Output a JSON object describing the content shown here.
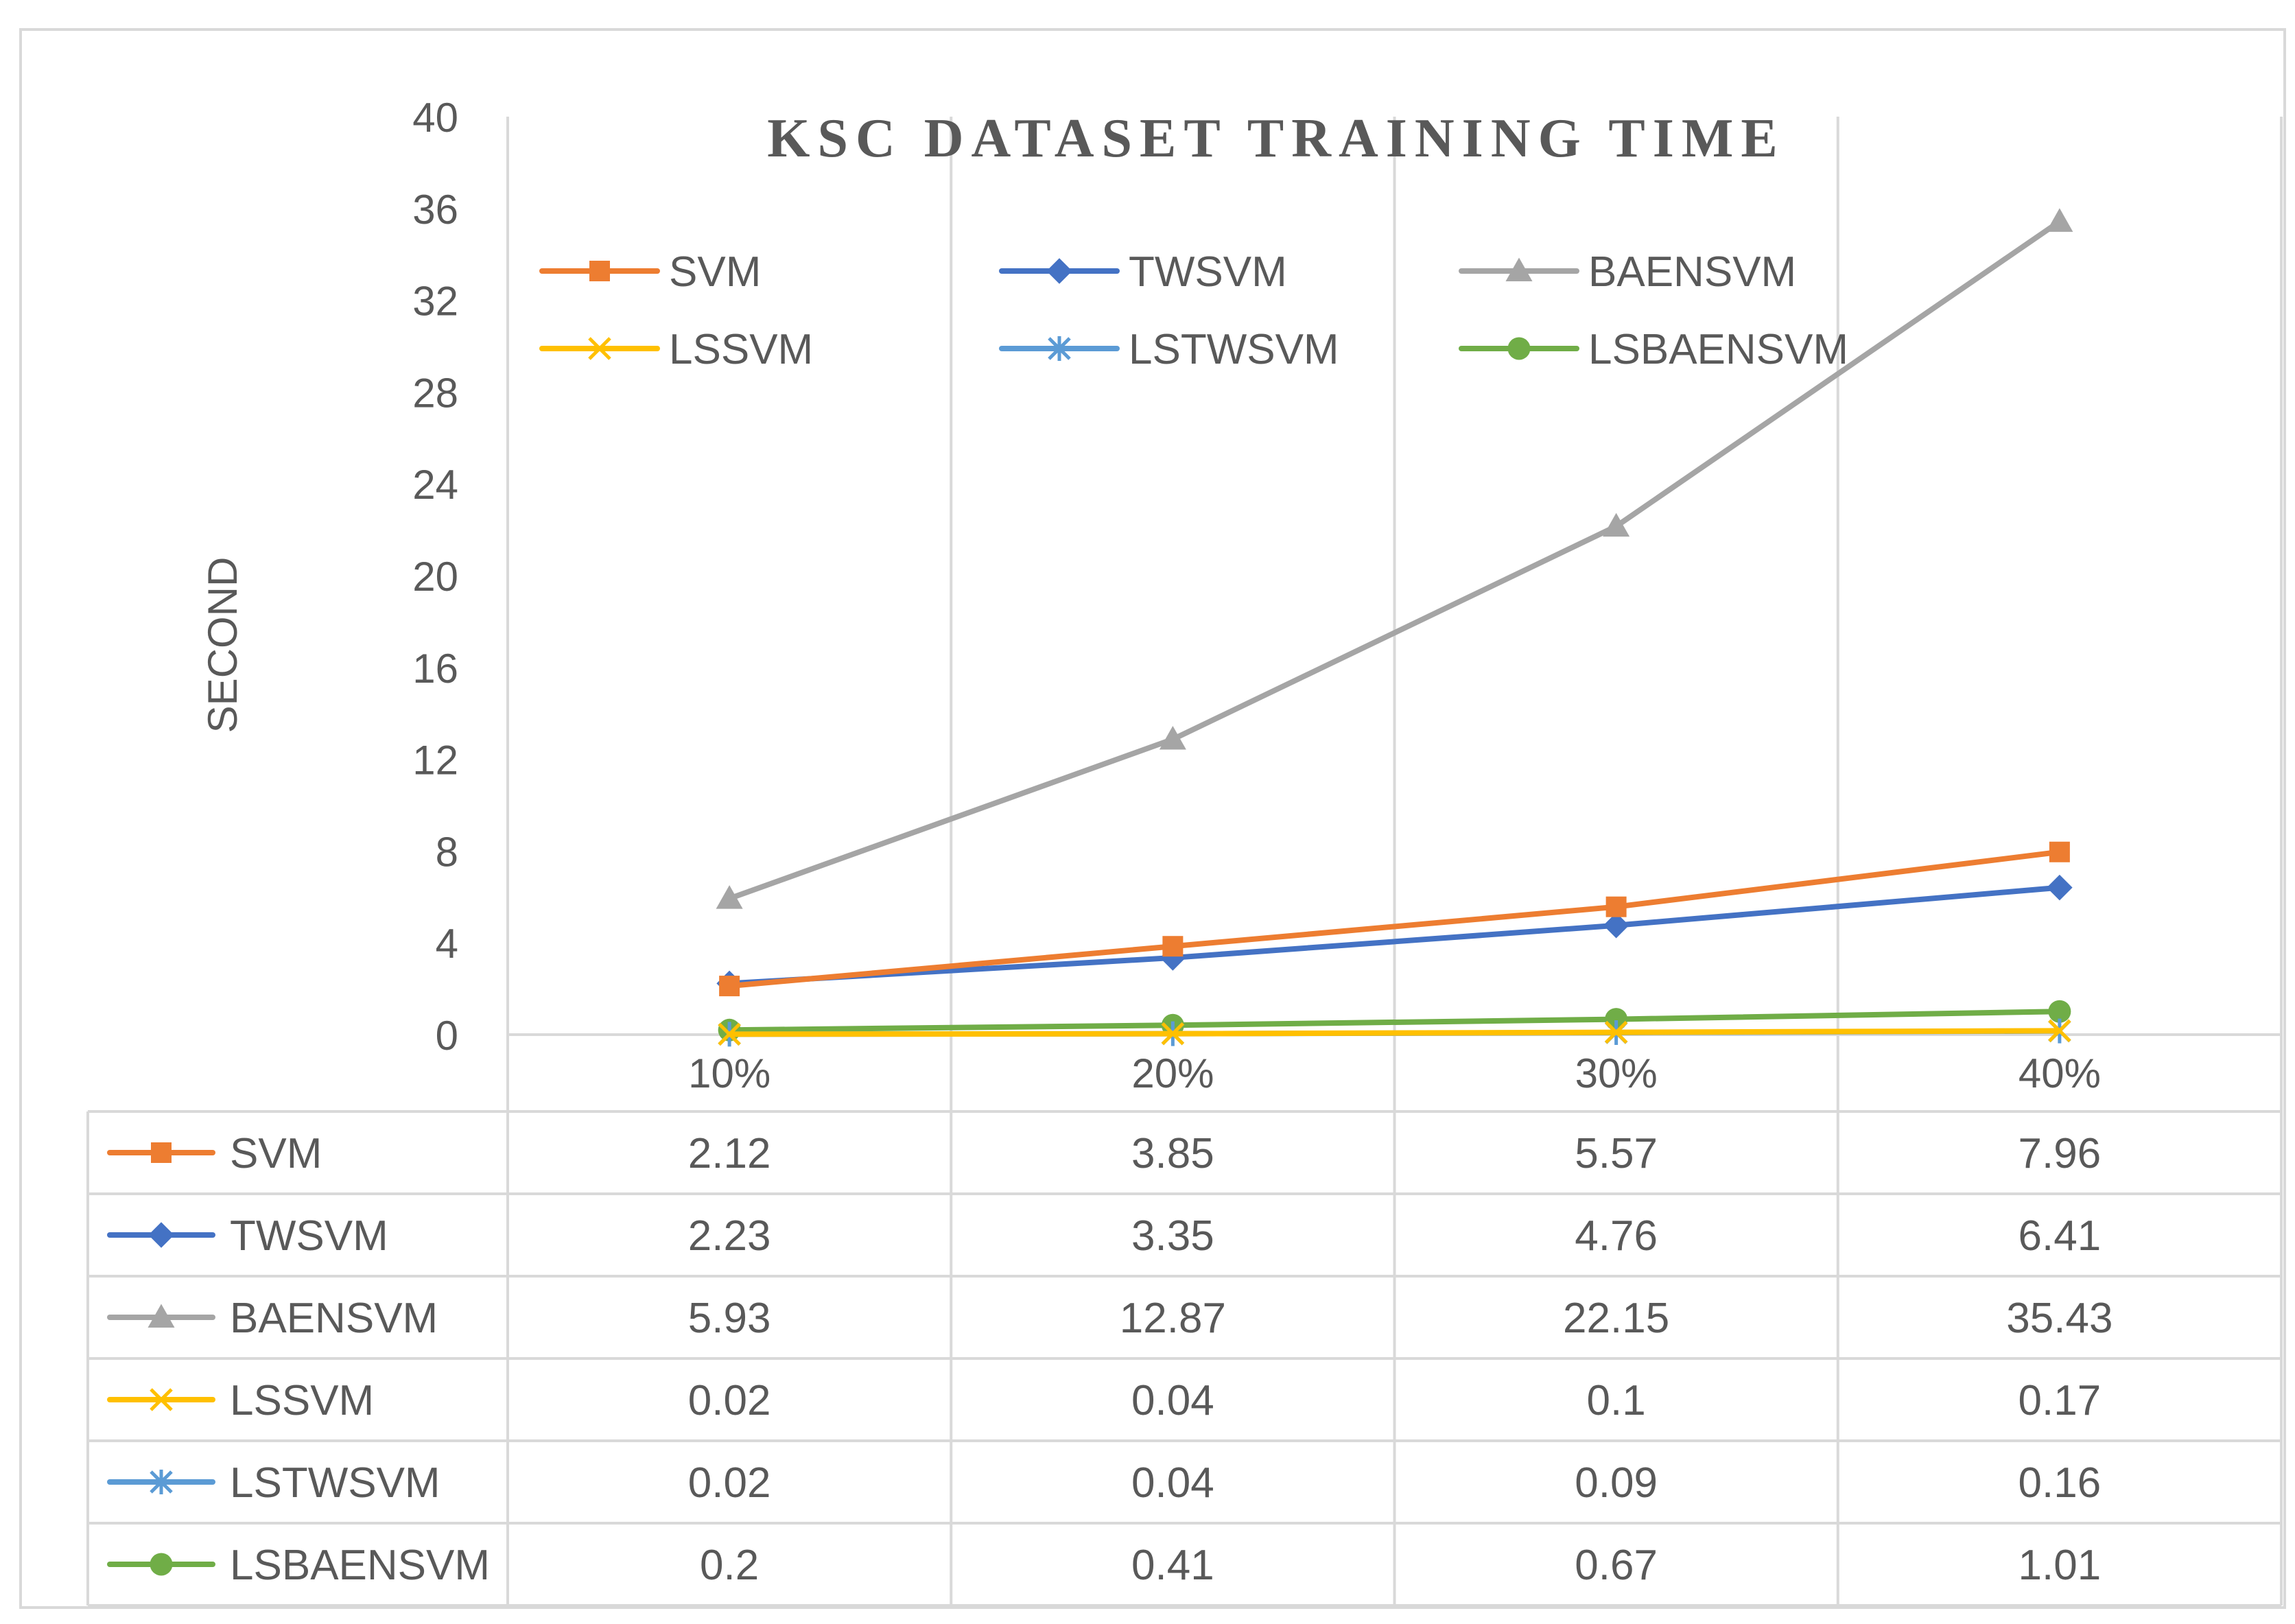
{
  "chart_data": {
    "type": "line",
    "title": "KSC DATASET TRAINING TIME",
    "xlabel": "",
    "ylabel": "SECOND",
    "categories": [
      "10%",
      "20%",
      "30%",
      "40%"
    ],
    "ylim": [
      0,
      40
    ],
    "yticks": [
      0,
      4,
      8,
      12,
      16,
      20,
      24,
      28,
      32,
      36,
      40
    ],
    "grid": "vertical",
    "legend_position": "top",
    "data_table": true,
    "series": [
      {
        "name": "SVM",
        "marker": "square",
        "color": "#ED7D31",
        "values": [
          2.12,
          3.85,
          5.57,
          7.96
        ],
        "labels": [
          "2.12",
          "3.85",
          "5.57",
          "7.96"
        ]
      },
      {
        "name": "TWSVM",
        "marker": "diamond",
        "color": "#4472C4",
        "values": [
          2.23,
          3.35,
          4.76,
          6.41
        ],
        "labels": [
          "2.23",
          "3.35",
          "4.76",
          "6.41"
        ]
      },
      {
        "name": "BAENSVM",
        "marker": "triangle",
        "color": "#A5A5A5",
        "values": [
          5.93,
          12.87,
          22.15,
          35.43
        ],
        "labels": [
          "5.93",
          "12.87",
          "22.15",
          "35.43"
        ]
      },
      {
        "name": "LSSVM",
        "marker": "x",
        "color": "#FFC000",
        "values": [
          0.02,
          0.04,
          0.1,
          0.17
        ],
        "labels": [
          "0.02",
          "0.04",
          "0.1",
          "0.17"
        ]
      },
      {
        "name": "LSTWSVM",
        "marker": "star",
        "color": "#5B9BD5",
        "values": [
          0.02,
          0.04,
          0.09,
          0.16
        ],
        "labels": [
          "0.02",
          "0.04",
          "0.09",
          "0.16"
        ]
      },
      {
        "name": "LSBAENSVM",
        "marker": "circle",
        "color": "#70AD47",
        "values": [
          0.2,
          0.41,
          0.67,
          1.01
        ],
        "labels": [
          "0.2",
          "0.41",
          "0.67",
          "1.01"
        ]
      }
    ]
  }
}
